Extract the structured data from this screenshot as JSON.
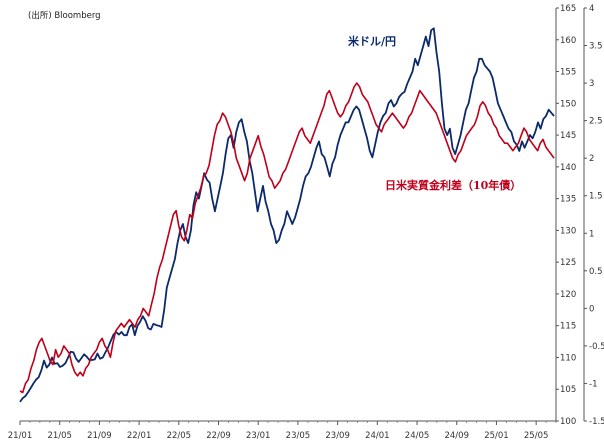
{
  "chart_data": {
    "type": "line",
    "source": "(出所) Bloomberg",
    "x_tick_labels": [
      "21/01",
      "21/05",
      "21/09",
      "22/01",
      "22/05",
      "22/09",
      "23/01",
      "23/05",
      "23/09",
      "24/01",
      "24/05",
      "24/09",
      "25/01",
      "25/05"
    ],
    "x_start": "2021-01",
    "x_step": "week",
    "y_left": {
      "min": 100,
      "max": 165,
      "step": 5
    },
    "y_right": {
      "min": -1.5,
      "max": 4,
      "step": 0.5
    },
    "grid": false,
    "series": [
      {
        "name": "米ドル/円",
        "axis": "left",
        "color": "#0b2a6b",
        "values": [
          103.0,
          103.6,
          103.9,
          104.5,
          105.2,
          105.9,
          106.5,
          106.9,
          108.0,
          109.5,
          108.4,
          108.9,
          110.0,
          109.0,
          109.1,
          108.5,
          108.7,
          109.1,
          110.0,
          110.9,
          110.8,
          109.8,
          109.3,
          109.9,
          110.5,
          110.1,
          109.6,
          109.6,
          109.7,
          110.6,
          109.8,
          110.0,
          110.8,
          111.6,
          112.6,
          113.6,
          114.0,
          113.6,
          114.0,
          113.5,
          113.5,
          114.8,
          115.2,
          113.5,
          115.0,
          115.6,
          116.5,
          115.8,
          114.6,
          114.4,
          115.3,
          115.1,
          115.0,
          114.8,
          117.5,
          121.0,
          122.5,
          124.0,
          125.5,
          128.0,
          130.0,
          131.0,
          129.0,
          128.0,
          130.0,
          134.0,
          136.0,
          135.0,
          137.0,
          139.0,
          138.0,
          137.5,
          135.0,
          133.0,
          135.0,
          137.0,
          139.0,
          142.0,
          144.5,
          145.0,
          143.0,
          145.5,
          147.0,
          147.5,
          145.5,
          144.0,
          141.0,
          139.0,
          136.0,
          133.0,
          135.0,
          137.0,
          134.5,
          133.0,
          131.0,
          130.0,
          128.0,
          128.5,
          130.0,
          131.0,
          133.0,
          132.0,
          131.0,
          132.0,
          133.5,
          135.0,
          137.0,
          138.5,
          139.0,
          140.0,
          141.5,
          143.0,
          144.0,
          142.0,
          141.5,
          140.0,
          138.5,
          140.5,
          141.5,
          143.5,
          145.0,
          146.0,
          147.0,
          147.0,
          148.0,
          149.0,
          149.5,
          149.0,
          147.5,
          146.0,
          144.5,
          142.5,
          141.5,
          143.5,
          145.5,
          147.0,
          148.0,
          148.5,
          150.0,
          150.5,
          149.5,
          150.0,
          151.0,
          151.5,
          151.8,
          153.0,
          154.0,
          155.0,
          157.0,
          156.0,
          157.5,
          159.0,
          160.5,
          159.0,
          161.5,
          161.8,
          158.0,
          155.0,
          150.0,
          146.0,
          145.0,
          146.0,
          143.0,
          142.0,
          143.5,
          145.0,
          147.0,
          149.0,
          150.0,
          152.0,
          154.0,
          155.0,
          157.0,
          157.0,
          156.0,
          155.5,
          155.0,
          154.0,
          152.0,
          150.0,
          149.0,
          148.0,
          147.0,
          146.0,
          145.5,
          144.0,
          143.5,
          142.5,
          144.0,
          143.0,
          144.0,
          145.0,
          144.5,
          145.5,
          147.0,
          146.0,
          147.5,
          148.0,
          149.0,
          148.5,
          148.0
        ]
      },
      {
        "name": "日米実質金利差（10年債）",
        "axis": "right",
        "color": "#c0001a",
        "values": [
          -1.1,
          -1.12,
          -1.0,
          -0.95,
          -0.8,
          -0.7,
          -0.55,
          -0.45,
          -0.4,
          -0.5,
          -0.6,
          -0.7,
          -0.75,
          -0.55,
          -0.65,
          -0.6,
          -0.5,
          -0.55,
          -0.6,
          -0.75,
          -0.85,
          -0.9,
          -0.85,
          -0.9,
          -0.8,
          -0.75,
          -0.65,
          -0.6,
          -0.55,
          -0.45,
          -0.4,
          -0.5,
          -0.55,
          -0.65,
          -0.45,
          -0.3,
          -0.25,
          -0.2,
          -0.25,
          -0.2,
          -0.15,
          -0.2,
          -0.25,
          -0.15,
          -0.1,
          0.0,
          -0.05,
          -0.1,
          0.05,
          0.2,
          0.4,
          0.55,
          0.65,
          0.8,
          0.95,
          1.1,
          1.25,
          1.3,
          1.1,
          0.95,
          0.9,
          1.05,
          1.25,
          1.2,
          1.4,
          1.5,
          1.6,
          1.75,
          1.8,
          1.9,
          2.1,
          2.3,
          2.45,
          2.5,
          2.6,
          2.55,
          2.45,
          2.35,
          2.2,
          2.0,
          1.9,
          1.8,
          1.7,
          1.8,
          2.0,
          2.1,
          2.2,
          2.3,
          2.15,
          2.05,
          1.9,
          1.75,
          1.7,
          1.6,
          1.65,
          1.7,
          1.8,
          1.85,
          1.95,
          2.05,
          2.15,
          2.25,
          2.35,
          2.4,
          2.3,
          2.25,
          2.2,
          2.3,
          2.4,
          2.5,
          2.6,
          2.7,
          2.85,
          2.9,
          2.8,
          2.7,
          2.6,
          2.55,
          2.6,
          2.7,
          2.75,
          2.85,
          2.95,
          3.0,
          2.95,
          2.85,
          2.8,
          2.75,
          2.65,
          2.55,
          2.45,
          2.4,
          2.35,
          2.45,
          2.5,
          2.55,
          2.6,
          2.55,
          2.5,
          2.45,
          2.4,
          2.45,
          2.55,
          2.6,
          2.7,
          2.8,
          2.9,
          2.85,
          2.8,
          2.75,
          2.7,
          2.65,
          2.6,
          2.5,
          2.4,
          2.3,
          2.2,
          2.1,
          2.0,
          1.95,
          2.05,
          2.1,
          2.2,
          2.3,
          2.35,
          2.4,
          2.45,
          2.55,
          2.7,
          2.75,
          2.7,
          2.6,
          2.55,
          2.45,
          2.4,
          2.3,
          2.25,
          2.2,
          2.2,
          2.15,
          2.1,
          2.15,
          2.2,
          2.3,
          2.4,
          2.35,
          2.25,
          2.2,
          2.15,
          2.1,
          2.2,
          2.25,
          2.15,
          2.1,
          2.05,
          2.0
        ]
      }
    ]
  }
}
